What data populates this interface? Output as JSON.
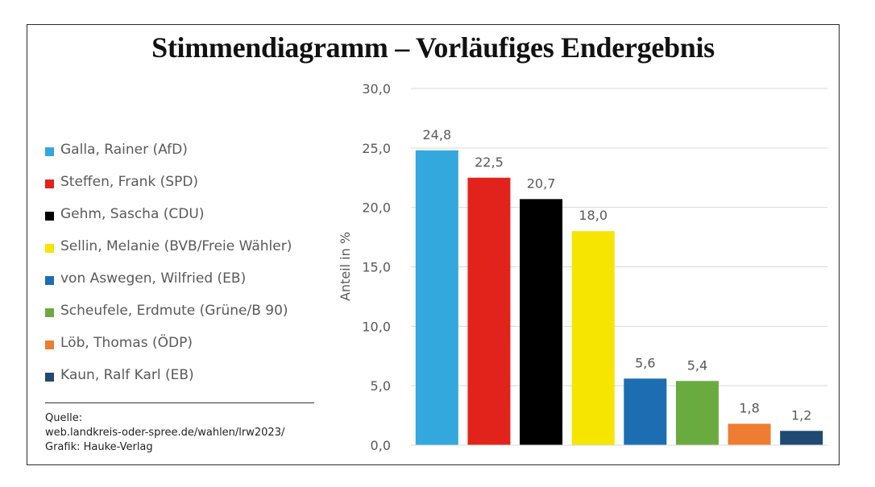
{
  "chart_data": {
    "type": "bar",
    "title": "Stimmendiagramm – Vorläufiges Endergebnis",
    "ylabel": "Anteil in %",
    "xlabel": "",
    "ylim": [
      0,
      30
    ],
    "yticks": [
      "0,0",
      "5,0",
      "10,0",
      "15,0",
      "20,0",
      "25,0",
      "30,0"
    ],
    "grid": true,
    "legend_position": "left",
    "categories": [
      "Galla, Rainer (AfD)",
      "Steffen, Frank (SPD)",
      "Gehm, Sascha (CDU)",
      "Sellin, Melanie (BVB/Freie Wähler)",
      "von Aswegen, Wilfried (EB)",
      "Scheufele, Erdmute (Grüne/B 90)",
      "Löb, Thomas (ÖDP)",
      "Kaun, Ralf Karl (EB)"
    ],
    "values": [
      24.8,
      22.5,
      20.7,
      18.0,
      5.6,
      5.4,
      1.8,
      1.2
    ],
    "value_labels": [
      "24,8",
      "22,5",
      "20,7",
      "18,0",
      "5,6",
      "5,4",
      "1,8",
      "1,2"
    ],
    "colors": [
      "#33a8dc",
      "#e2231c",
      "#000000",
      "#f5e500",
      "#1d6db2",
      "#6aab3f",
      "#ee7d31",
      "#1e4a73"
    ]
  },
  "source": {
    "line1": "Quelle:",
    "line2": "web.landkreis-oder-spree.de/wahlen/lrw2023/",
    "line3": "Grafik: Hauke-Verlag"
  }
}
